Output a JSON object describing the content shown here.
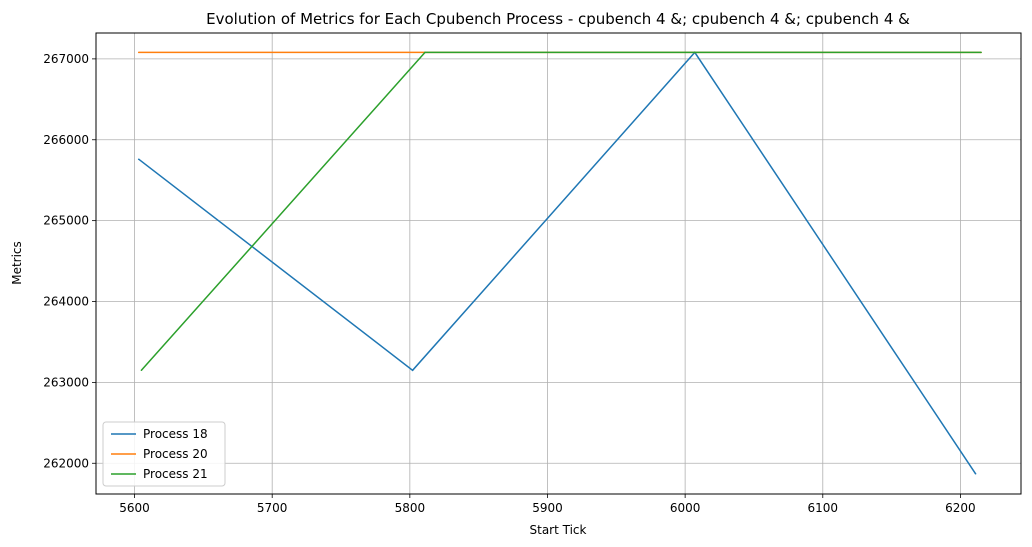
{
  "chart_data": {
    "type": "line",
    "title": "Evolution of Metrics for Each Cpubench Process - cpubench 4 &; cpubench 4 &; cpubench 4 &",
    "xlabel": "Start Tick",
    "ylabel": "Metrics",
    "xlim": [
      5572,
      6244
    ],
    "ylim": [
      261620,
      267320
    ],
    "xticks": [
      5600,
      5700,
      5800,
      5900,
      6000,
      6100,
      6200
    ],
    "yticks": [
      262000,
      263000,
      264000,
      265000,
      266000,
      267000
    ],
    "grid": true,
    "legend_position": "lower-left",
    "series": [
      {
        "name": "Process 18",
        "color": "#1f77b4",
        "x": [
          5603,
          5802,
          6007,
          6211
        ],
        "y": [
          265760,
          263150,
          267080,
          261870
        ]
      },
      {
        "name": "Process 20",
        "color": "#ff7f0e",
        "x": [
          5603,
          5811,
          6007,
          6215
        ],
        "y": [
          267080,
          267080,
          267080,
          267080
        ]
      },
      {
        "name": "Process 21",
        "color": "#2ca02c",
        "x": [
          5605,
          5811,
          6007,
          6215
        ],
        "y": [
          263150,
          267080,
          267080,
          267080
        ]
      }
    ]
  }
}
